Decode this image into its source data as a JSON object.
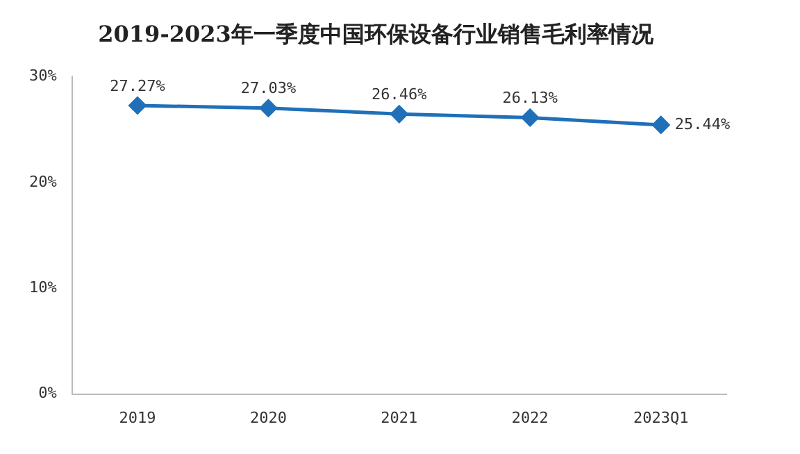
{
  "chart_data": {
    "type": "line",
    "title": "2019-2023年一季度中国环保设备行业销售毛利率情况",
    "categories": [
      "2019",
      "2020",
      "2021",
      "2022",
      "2023Q1"
    ],
    "series": [
      {
        "color": "#1f70b8",
        "values": [
          27.27,
          27.03,
          26.46,
          26.13,
          25.44
        ],
        "value_labels": [
          "27.27%",
          "27.03%",
          "26.46%",
          "26.13%",
          "25.44%"
        ]
      }
    ],
    "ylim": [
      0,
      30
    ],
    "yticks": [
      {
        "value": 0,
        "label": "0%"
      },
      {
        "value": 10,
        "label": "10%"
      },
      {
        "value": 20,
        "label": "20%"
      },
      {
        "value": 30,
        "label": "30%"
      }
    ],
    "grid": false,
    "legend": false,
    "marker": "diamond",
    "line_style": "solid"
  }
}
